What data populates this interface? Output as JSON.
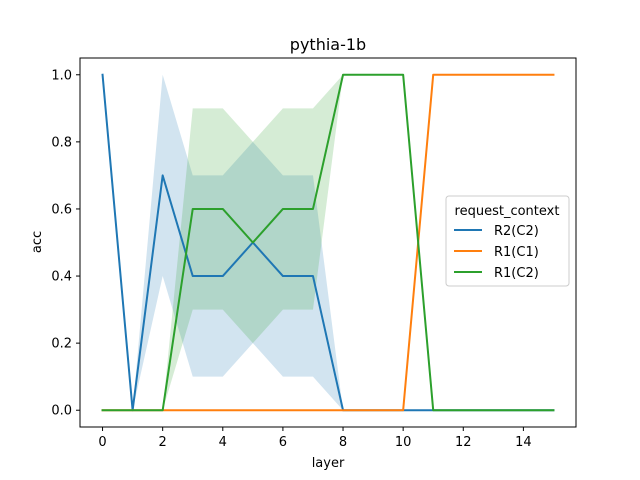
{
  "chart_data": {
    "type": "line",
    "title": "pythia-1b",
    "xlabel": "layer",
    "ylabel": "acc",
    "xlim": [
      -0.75,
      15.75
    ],
    "ylim": [
      -0.05,
      1.05
    ],
    "xticks": [
      0,
      2,
      4,
      6,
      8,
      10,
      12,
      14
    ],
    "xtick_labels": [
      "0",
      "2",
      "4",
      "6",
      "8",
      "10",
      "12",
      "14"
    ],
    "yticks": [
      0.0,
      0.2,
      0.4,
      0.6,
      0.8,
      1.0
    ],
    "ytick_labels": [
      "0.0",
      "0.2",
      "0.4",
      "0.6",
      "0.8",
      "1.0"
    ],
    "grid": false,
    "x": [
      0,
      1,
      2,
      3,
      4,
      5,
      6,
      7,
      8,
      9,
      10,
      11,
      12,
      13,
      14,
      15
    ],
    "legend": {
      "title": "request_context",
      "placement": "center-right"
    },
    "series": [
      {
        "name": "R2(C2)",
        "color": "#1f77b4",
        "values": [
          1.0,
          0.0,
          0.7,
          0.4,
          0.4,
          0.5,
          0.4,
          0.4,
          0.0,
          0.0,
          0.0,
          0.0,
          0.0,
          0.0,
          0.0,
          0.0
        ],
        "ci_lower": [
          1.0,
          0.0,
          0.4,
          0.1,
          0.1,
          0.2,
          0.1,
          0.1,
          0.0,
          0.0,
          0.0,
          0.0,
          0.0,
          0.0,
          0.0,
          0.0
        ],
        "ci_upper": [
          1.0,
          0.0,
          1.0,
          0.7,
          0.7,
          0.8,
          0.7,
          0.7,
          0.0,
          0.0,
          0.0,
          0.0,
          0.0,
          0.0,
          0.0,
          0.0
        ]
      },
      {
        "name": "R1(C1)",
        "color": "#ff7f0e",
        "values": [
          0.0,
          0.0,
          0.0,
          0.0,
          0.0,
          0.0,
          0.0,
          0.0,
          0.0,
          0.0,
          0.0,
          1.0,
          1.0,
          1.0,
          1.0,
          1.0
        ],
        "ci_lower": [
          0.0,
          0.0,
          0.0,
          0.0,
          0.0,
          0.0,
          0.0,
          0.0,
          0.0,
          0.0,
          0.0,
          1.0,
          1.0,
          1.0,
          1.0,
          1.0
        ],
        "ci_upper": [
          0.0,
          0.0,
          0.0,
          0.0,
          0.0,
          0.0,
          0.0,
          0.0,
          0.0,
          0.0,
          0.0,
          1.0,
          1.0,
          1.0,
          1.0,
          1.0
        ]
      },
      {
        "name": "R1(C2)",
        "color": "#2ca02c",
        "values": [
          0.0,
          0.0,
          0.0,
          0.6,
          0.6,
          0.5,
          0.6,
          0.6,
          1.0,
          1.0,
          1.0,
          0.0,
          0.0,
          0.0,
          0.0,
          0.0
        ],
        "ci_lower": [
          0.0,
          0.0,
          0.0,
          0.3,
          0.3,
          0.2,
          0.3,
          0.3,
          1.0,
          1.0,
          1.0,
          0.0,
          0.0,
          0.0,
          0.0,
          0.0
        ],
        "ci_upper": [
          0.0,
          0.0,
          0.0,
          0.9,
          0.9,
          0.8,
          0.9,
          0.9,
          1.0,
          1.0,
          1.0,
          0.0,
          0.0,
          0.0,
          0.0,
          0.0
        ]
      }
    ]
  }
}
